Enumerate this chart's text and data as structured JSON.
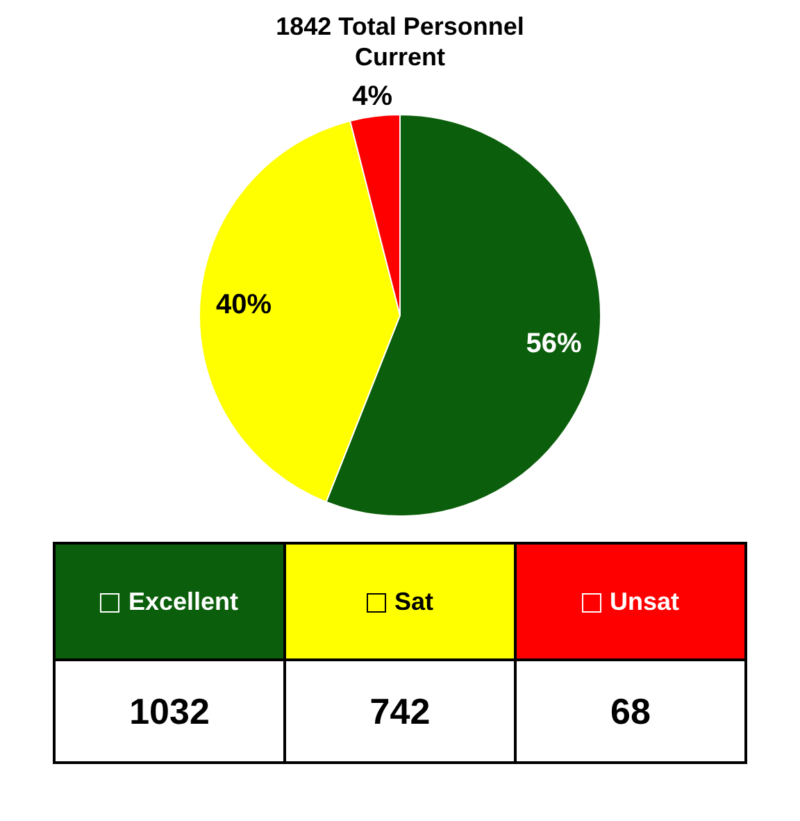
{
  "chart_data": {
    "type": "pie",
    "title": "1842 Total Personnel Current",
    "categories": [
      "Excellent",
      "Sat",
      "Unsat"
    ],
    "values": [
      56,
      40,
      4
    ],
    "colors": [
      "#0b5e0b",
      "#ffff00",
      "#ff0000"
    ],
    "value_labels": [
      "56%",
      "40%",
      "4%"
    ],
    "legend": "bottom",
    "annotations": [
      "1032",
      "742",
      "68"
    ]
  }
}
